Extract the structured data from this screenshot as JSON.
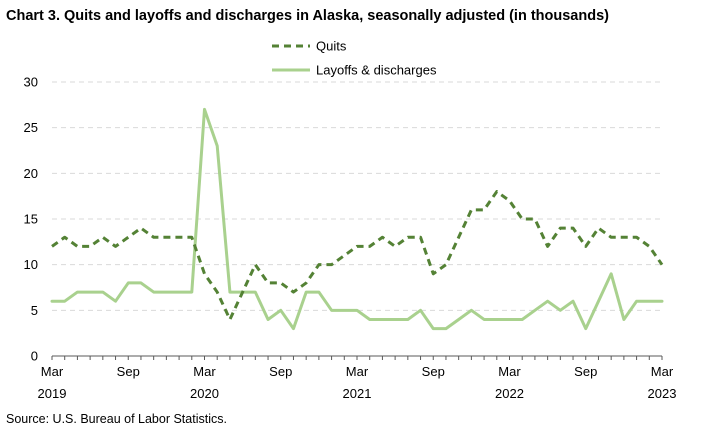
{
  "title": "Chart 3. Quits and layoffs and discharges in Alaska, seasonally adjusted (in thousands)",
  "source": "Source: U.S. Bureau of Labor Statistics.",
  "colors": {
    "quits": "#548235",
    "layoffs": "#a9d18e",
    "grid": "#d9d9d9",
    "axis": "#595959"
  },
  "chart_data": {
    "type": "line",
    "title": "Chart 3. Quits and layoffs and discharges in Alaska, seasonally adjusted (in thousands)",
    "xlabel": "",
    "ylabel": "",
    "ylim": [
      0,
      30
    ],
    "yticks": [
      0,
      5,
      10,
      15,
      20,
      25,
      30
    ],
    "grid": "horizontal dashed",
    "legend": "top-center",
    "x": [
      "2019-03",
      "2019-04",
      "2019-05",
      "2019-06",
      "2019-07",
      "2019-08",
      "2019-09",
      "2019-10",
      "2019-11",
      "2019-12",
      "2020-01",
      "2020-02",
      "2020-03",
      "2020-04",
      "2020-05",
      "2020-06",
      "2020-07",
      "2020-08",
      "2020-09",
      "2020-10",
      "2020-11",
      "2020-12",
      "2021-01",
      "2021-02",
      "2021-03",
      "2021-04",
      "2021-05",
      "2021-06",
      "2021-07",
      "2021-08",
      "2021-09",
      "2021-10",
      "2021-11",
      "2021-12",
      "2022-01",
      "2022-02",
      "2022-03",
      "2022-04",
      "2022-05",
      "2022-06",
      "2022-07",
      "2022-08",
      "2022-09",
      "2022-10",
      "2022-11",
      "2022-12",
      "2023-01",
      "2023-02",
      "2023-03"
    ],
    "x_tick_labels": [
      {
        "x": "2019-03",
        "line1": "Mar",
        "line2": "2019"
      },
      {
        "x": "2019-09",
        "line1": "Sep",
        "line2": ""
      },
      {
        "x": "2020-03",
        "line1": "Mar",
        "line2": "2020"
      },
      {
        "x": "2020-09",
        "line1": "Sep",
        "line2": ""
      },
      {
        "x": "2021-03",
        "line1": "Mar",
        "line2": "2021"
      },
      {
        "x": "2021-09",
        "line1": "Sep",
        "line2": ""
      },
      {
        "x": "2022-03",
        "line1": "Mar",
        "line2": "2022"
      },
      {
        "x": "2022-09",
        "line1": "Sep",
        "line2": ""
      },
      {
        "x": "2023-03",
        "line1": "Mar",
        "line2": "2023"
      }
    ],
    "series": [
      {
        "name": "Quits",
        "style": "dashed",
        "values": [
          12,
          13,
          12,
          12,
          13,
          12,
          13,
          14,
          13,
          13,
          13,
          13,
          9,
          7,
          4,
          7,
          10,
          8,
          8,
          7,
          8,
          10,
          10,
          11,
          12,
          12,
          13,
          12,
          13,
          13,
          9,
          10,
          13,
          16,
          16,
          18,
          17,
          15,
          15,
          12,
          14,
          14,
          12,
          14,
          13,
          13,
          13,
          12,
          10
        ]
      },
      {
        "name": "Layoffs & discharges",
        "style": "solid",
        "values": [
          6,
          6,
          7,
          7,
          7,
          6,
          8,
          8,
          7,
          7,
          7,
          7,
          27,
          23,
          7,
          7,
          7,
          4,
          5,
          3,
          7,
          7,
          5,
          5,
          5,
          4,
          4,
          4,
          4,
          5,
          3,
          3,
          4,
          5,
          4,
          4,
          4,
          4,
          5,
          6,
          5,
          6,
          3,
          6,
          9,
          4,
          6,
          6,
          6
        ]
      }
    ]
  }
}
